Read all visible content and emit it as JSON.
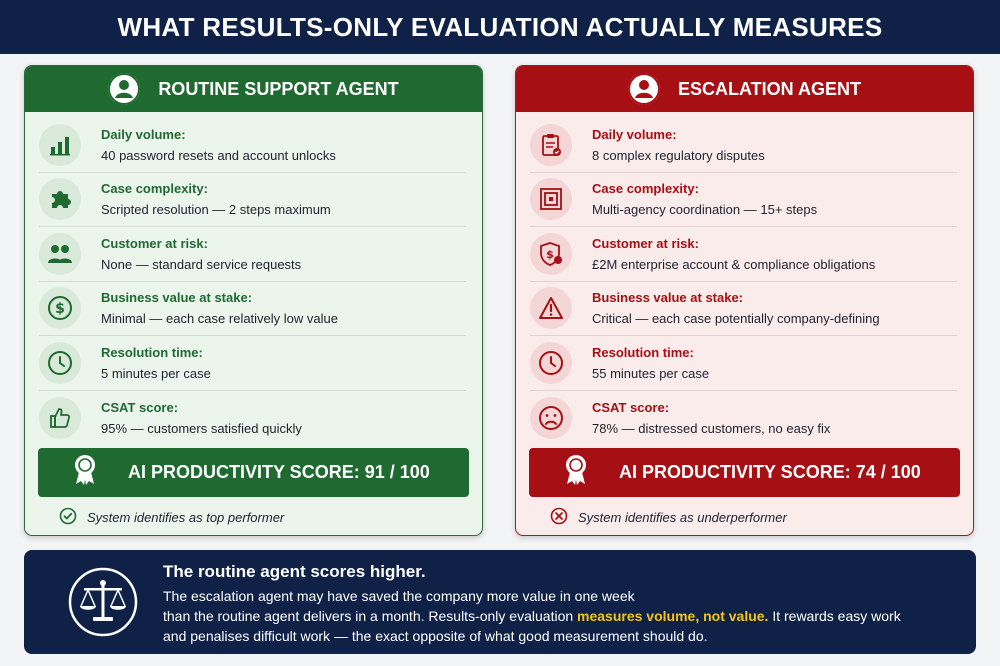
{
  "title": "WHAT RESULTS-ONLY EVALUATION ACTUALLY MEASURES",
  "colors": {
    "navy": "#0f2147",
    "green": "#1e6a31",
    "red": "#a60f14",
    "highlight": "#f5c518"
  },
  "routine": {
    "heading": "ROUTINE SUPPORT AGENT",
    "rows": [
      {
        "icon": "bar-chart-icon",
        "label": "Daily volume:",
        "value": "40 password resets and account unlocks"
      },
      {
        "icon": "puzzle-icon",
        "label": "Case complexity:",
        "value": "Scripted resolution — 2 steps maximum"
      },
      {
        "icon": "people-icon",
        "label": "Customer at risk:",
        "value": "None — standard service requests"
      },
      {
        "icon": "dollar-icon",
        "label": "Business value at stake:",
        "value": "Minimal — each case relatively low value"
      },
      {
        "icon": "clock-icon",
        "label": "Resolution time:",
        "value": "5 minutes per case"
      },
      {
        "icon": "thumbs-up-icon",
        "label": "CSAT score:",
        "value": "95% — customers satisfied quickly"
      }
    ],
    "score": "AI PRODUCTIVITY SCORE: 91 / 100",
    "verdict": "System identifies as top performer"
  },
  "escalation": {
    "heading": "ESCALATION AGENT",
    "rows": [
      {
        "icon": "clipboard-icon",
        "label": "Daily volume:",
        "value": "8 complex regulatory disputes"
      },
      {
        "icon": "maze-icon",
        "label": "Case complexity:",
        "value": "Multi-agency coordination — 15+ steps"
      },
      {
        "icon": "shield-dollar-icon",
        "label": "Customer at risk:",
        "value": "£2M enterprise account & compliance obligations"
      },
      {
        "icon": "warning-icon",
        "label": "Business value at stake:",
        "value": "Critical — each case potentially company-defining"
      },
      {
        "icon": "clock-icon",
        "label": "Resolution time:",
        "value": "55 minutes per case"
      },
      {
        "icon": "sad-face-icon",
        "label": "CSAT score:",
        "value": "78% — distressed customers, no easy fix"
      }
    ],
    "score": "AI PRODUCTIVITY SCORE: 74 / 100",
    "verdict": "System identifies as underperformer"
  },
  "bottom": {
    "heading": "The routine agent scores higher.",
    "line1": "The escalation agent may have saved the company more value in one week",
    "line2_before": "than the routine agent delivers in a month. Results-only evaluation ",
    "line2_highlight": "measures volume, not value.",
    "line2_after": " It rewards easy work",
    "line3": "and penalises difficult work — the exact opposite of what good measurement should do."
  }
}
